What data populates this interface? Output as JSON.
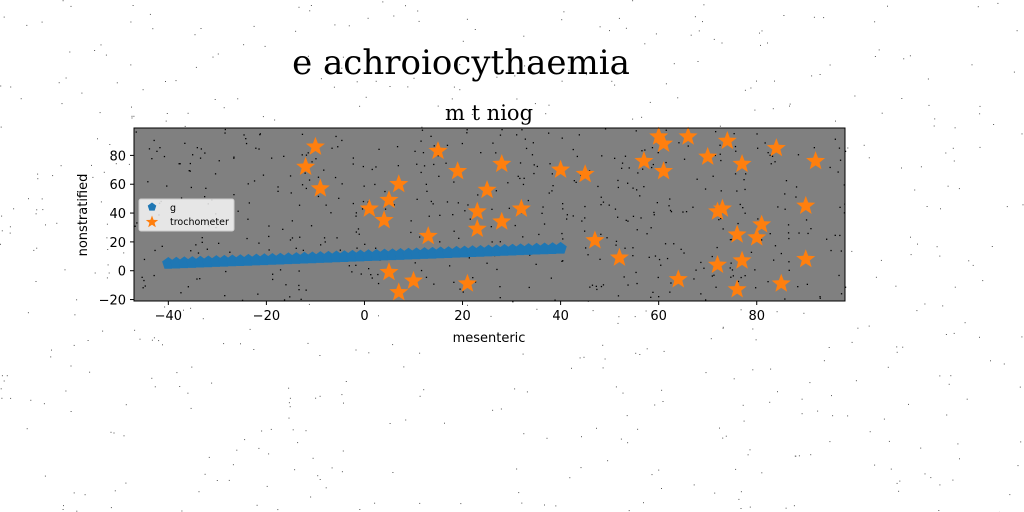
{
  "figure": {
    "suptitle": "e achroiocythaemia"
  },
  "colors": {
    "figure_bg": "#ffffff",
    "axes_bg": "#808080",
    "speckle": "#000000",
    "series_g": "#1f77b4",
    "series_trochometer": "#ff7f0e"
  },
  "chart_data": {
    "type": "scatter",
    "title": "m t niog",
    "xlabel": "mesenteric",
    "ylabel": "nonstratified",
    "xlim": [
      -47,
      98
    ],
    "ylim": [
      -21,
      99
    ],
    "xticks": [
      -40,
      -20,
      0,
      20,
      40,
      60,
      80
    ],
    "yticks": [
      -20,
      0,
      20,
      40,
      60,
      80
    ],
    "grid": false,
    "legend_position": "center-left",
    "series": [
      {
        "name": "g",
        "marker": "pentagon",
        "x_range": [
          -40,
          40
        ],
        "y_range": [
          5,
          15.5
        ],
        "count": 50
      },
      {
        "name": "trochometer",
        "marker": "star",
        "points": [
          [
            -12,
            72
          ],
          [
            -10,
            86
          ],
          [
            -9,
            57
          ],
          [
            1,
            43
          ],
          [
            4,
            35
          ],
          [
            5,
            49
          ],
          [
            7,
            60
          ],
          [
            5,
            -1
          ],
          [
            7,
            -15
          ],
          [
            10,
            -7
          ],
          [
            13,
            24
          ],
          [
            15,
            83
          ],
          [
            19,
            69
          ],
          [
            21,
            -9
          ],
          [
            23,
            41
          ],
          [
            23,
            29
          ],
          [
            25,
            56
          ],
          [
            28,
            74
          ],
          [
            28,
            34
          ],
          [
            32,
            43
          ],
          [
            40,
            70
          ],
          [
            45,
            67
          ],
          [
            47,
            21
          ],
          [
            52,
            9
          ],
          [
            57,
            76
          ],
          [
            60,
            93
          ],
          [
            61,
            88
          ],
          [
            61,
            69
          ],
          [
            64,
            -6
          ],
          [
            66,
            93
          ],
          [
            70,
            79
          ],
          [
            72,
            4
          ],
          [
            72,
            41
          ],
          [
            73,
            43
          ],
          [
            74,
            90
          ],
          [
            76,
            25
          ],
          [
            76,
            -13
          ],
          [
            77,
            74
          ],
          [
            77,
            7
          ],
          [
            80,
            23
          ],
          [
            81,
            32
          ],
          [
            84,
            85
          ],
          [
            85,
            -9
          ],
          [
            90,
            45
          ],
          [
            90,
            8
          ],
          [
            92,
            76
          ]
        ]
      }
    ]
  }
}
